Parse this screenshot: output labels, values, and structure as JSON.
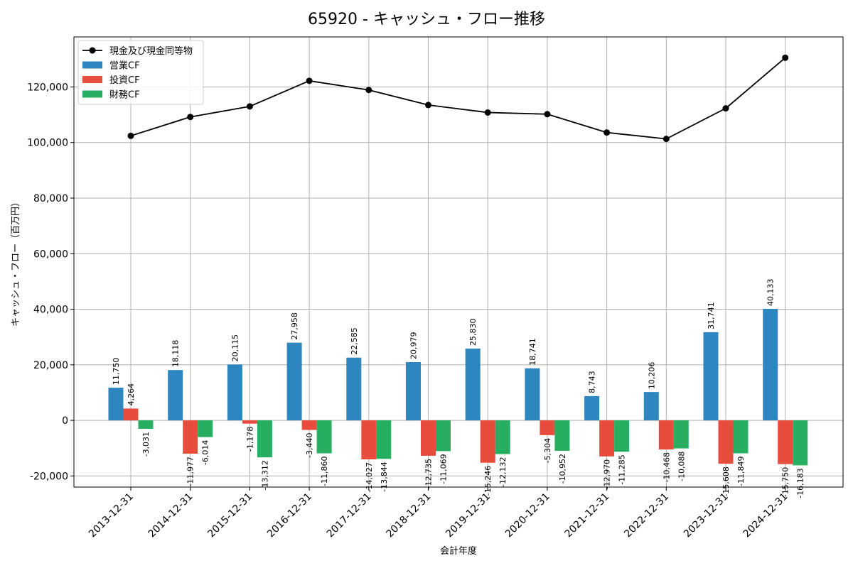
{
  "chart_data": {
    "type": "bar",
    "title": "65920 - キャッシュ・フロー推移",
    "xlabel": "会計年度",
    "ylabel": "キャッシュ・フロー（百万円）",
    "ylim": [
      -24000,
      138000
    ],
    "yticks": [
      -20000,
      0,
      20000,
      40000,
      60000,
      80000,
      100000,
      120000
    ],
    "ytick_labels": [
      "-20,000",
      "0",
      "20,000",
      "40,000",
      "60,000",
      "80,000",
      "100,000",
      "120,000"
    ],
    "grid": true,
    "legend_position": "top-left",
    "categories": [
      "2013-12-31",
      "2014-12-31",
      "2015-12-31",
      "2016-12-31",
      "2017-12-31",
      "2018-12-31",
      "2019-12-31",
      "2020-12-31",
      "2021-12-31",
      "2022-12-31",
      "2023-12-31",
      "2024-12-31"
    ],
    "series": [
      {
        "name": "営業CF",
        "kind": "bar",
        "color": "#2e86c1",
        "values": [
          11750,
          18118,
          20115,
          27958,
          22585,
          20979,
          25830,
          18741,
          8743,
          10206,
          31741,
          40133
        ],
        "labels": [
          "11,750",
          "18,118",
          "20,115",
          "27,958",
          "22,585",
          "20,979",
          "25,830",
          "18,741",
          "8,743",
          "10,206",
          "31,741",
          "40,133"
        ]
      },
      {
        "name": "投資CF",
        "kind": "bar",
        "color": "#e74c3c",
        "values": [
          4264,
          -11977,
          -1178,
          -3440,
          -14027,
          -12735,
          -15246,
          -5304,
          -12970,
          -10468,
          -15608,
          -15750
        ],
        "labels": [
          "4,264",
          "-11,977",
          "-1,178",
          "-3,440",
          "-14,027",
          "-12,735",
          "-15,246",
          "-5,304",
          "-12,970",
          "-10,468",
          "-15,608",
          "-15,750"
        ]
      },
      {
        "name": "財務CF",
        "kind": "bar",
        "color": "#27ae60",
        "values": [
          -3031,
          -6014,
          -13312,
          -11860,
          -13844,
          -11069,
          -12132,
          -10952,
          -11285,
          -10088,
          -11849,
          -16183
        ],
        "labels": [
          "-3,031",
          "-6,014",
          "-13,312",
          "-11,860",
          "-13,844",
          "-11,069",
          "-12,132",
          "-10,952",
          "-11,285",
          "-10,088",
          "-11,849",
          "-16,183"
        ]
      },
      {
        "name": "現金及び現金同等物",
        "kind": "line",
        "color": "#000000",
        "values": [
          102400,
          109200,
          113000,
          122200,
          118900,
          113500,
          110800,
          110200,
          103600,
          101300,
          112300,
          130500
        ]
      }
    ]
  }
}
